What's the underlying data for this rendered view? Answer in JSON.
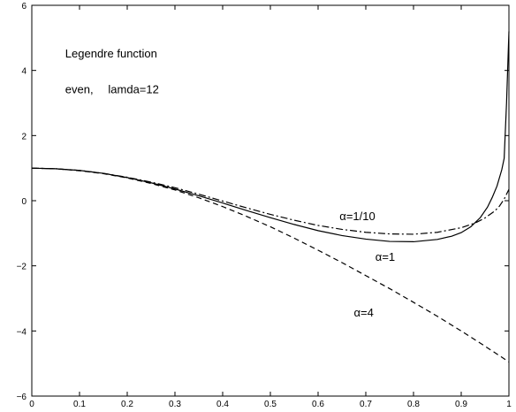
{
  "chart_data": {
    "type": "line",
    "title": "",
    "xlabel": "",
    "ylabel": "",
    "xlim": [
      0,
      1
    ],
    "ylim": [
      -6,
      6
    ],
    "grid": false,
    "legend": "none",
    "x_ticks": [
      0,
      0.1,
      0.2,
      0.3,
      0.4,
      0.5,
      0.6,
      0.7,
      0.8,
      0.9,
      1
    ],
    "x_tick_labels": [
      "0",
      "0.1",
      "0.2",
      "0.3",
      "0.4",
      "0.5",
      "0.6",
      "0.7",
      "0.8",
      "0.9",
      "1"
    ],
    "y_ticks": [
      -6,
      -4,
      -2,
      0,
      2,
      4,
      6
    ],
    "y_tick_labels": [
      "−6",
      "−4",
      "−2",
      "0",
      "2",
      "4",
      "6"
    ],
    "text_annotations": [
      {
        "name": "annotation-title",
        "text": "Legendre function",
        "x": 0.07,
        "y": 4.4,
        "anchor": "start"
      },
      {
        "name": "annotation-parity",
        "text": "even,",
        "x": 0.07,
        "y": 3.3,
        "anchor": "start"
      },
      {
        "name": "annotation-lambda",
        "text": "lamda=12",
        "x": 0.16,
        "y": 3.3,
        "anchor": "start"
      }
    ],
    "series": [
      {
        "label_text": "α=1/10",
        "label_x": 0.645,
        "label_y": -0.6,
        "dash": "8 3 2 3",
        "color": "#000000",
        "x": [
          0,
          0.05,
          0.1,
          0.15,
          0.2,
          0.25,
          0.3,
          0.35,
          0.4,
          0.45,
          0.5,
          0.55,
          0.6,
          0.65,
          0.7,
          0.75,
          0.8,
          0.85,
          0.9,
          0.93,
          0.95,
          0.97,
          0.98,
          0.99,
          1
        ],
        "y": [
          1.0,
          0.98,
          0.93,
          0.84,
          0.72,
          0.57,
          0.4,
          0.2,
          -0.01,
          -0.22,
          -0.42,
          -0.6,
          -0.76,
          -0.88,
          -0.97,
          -1.02,
          -1.03,
          -0.97,
          -0.83,
          -0.68,
          -0.53,
          -0.32,
          -0.17,
          0.05,
          0.35
        ]
      },
      {
        "label_text": "α=1",
        "label_x": 0.72,
        "label_y": -1.85,
        "dash": "",
        "color": "#000000",
        "x": [
          0,
          0.05,
          0.1,
          0.15,
          0.2,
          0.25,
          0.3,
          0.35,
          0.4,
          0.45,
          0.5,
          0.55,
          0.6,
          0.65,
          0.7,
          0.75,
          0.8,
          0.85,
          0.88,
          0.9,
          0.92,
          0.94,
          0.955,
          0.965,
          0.975,
          0.985,
          0.99,
          0.995,
          1
        ],
        "y": [
          1.0,
          0.98,
          0.93,
          0.84,
          0.71,
          0.55,
          0.36,
          0.15,
          -0.07,
          -0.3,
          -0.52,
          -0.73,
          -0.92,
          -1.07,
          -1.18,
          -1.25,
          -1.26,
          -1.19,
          -1.09,
          -0.98,
          -0.8,
          -0.52,
          -0.2,
          0.1,
          0.45,
          0.95,
          1.3,
          3.0,
          5.2
        ]
      },
      {
        "label_text": "α=4",
        "label_x": 0.675,
        "label_y": -3.55,
        "dash": "6 4",
        "color": "#000000",
        "x": [
          0,
          0.05,
          0.1,
          0.15,
          0.2,
          0.25,
          0.3,
          0.35,
          0.4,
          0.45,
          0.5,
          0.55,
          0.6,
          0.65,
          0.7,
          0.75,
          0.8,
          0.85,
          0.9,
          0.95,
          1
        ],
        "y": [
          1.0,
          0.98,
          0.92,
          0.83,
          0.7,
          0.53,
          0.33,
          0.09,
          -0.18,
          -0.48,
          -0.8,
          -1.15,
          -1.52,
          -1.9,
          -2.3,
          -2.7,
          -3.12,
          -3.55,
          -4.0,
          -4.47,
          -4.95
        ]
      }
    ]
  }
}
